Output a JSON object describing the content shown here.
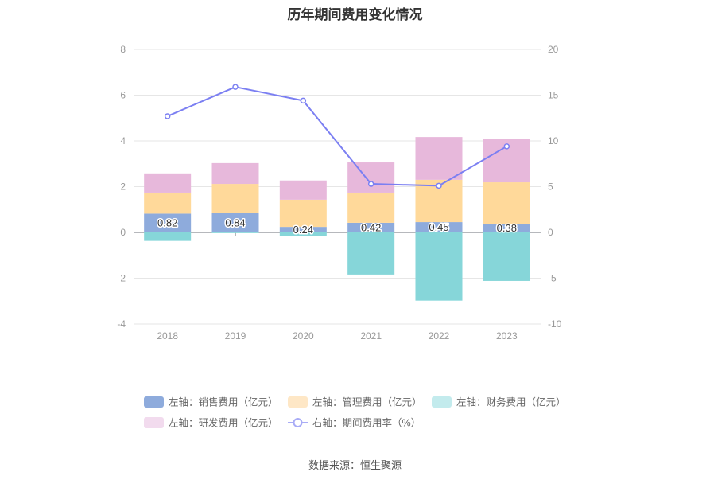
{
  "page": {
    "source": "数据来源：恒生聚源"
  },
  "colors": {
    "background": "#ffffff",
    "axis_label": "#999999",
    "grid": "#e6e6e6",
    "axis_line": "#6e7079",
    "legend_text": "#666666",
    "data_label": "#333333"
  },
  "chart_data": {
    "type": "bar",
    "title": "历年期间费用变化情况",
    "categories": [
      "2018",
      "2019",
      "2020",
      "2021",
      "2022",
      "2023"
    ],
    "y_left": {
      "ylim": [
        -4,
        8
      ],
      "ticks": [
        8,
        6,
        4,
        2,
        0,
        -2,
        -4
      ]
    },
    "y_right": {
      "ylim": [
        -10,
        20
      ],
      "ticks": [
        20,
        15,
        10,
        5,
        0,
        -5,
        -10
      ]
    },
    "grid": true,
    "legend_position": "bottom",
    "series": [
      {
        "name": "左轴：销售费用（亿元）",
        "type": "bar",
        "axis": "left",
        "stack": "total",
        "color": "#8eabdc",
        "legend_color": "#8eabdc",
        "values": [
          0.82,
          0.84,
          0.24,
          0.42,
          0.45,
          0.38
        ],
        "data_labels": [
          "0.82",
          "0.84",
          "0.24",
          "0.42",
          "0.45",
          "0.38"
        ]
      },
      {
        "name": "左轴：管理费用（亿元）",
        "type": "bar",
        "axis": "left",
        "stack": "total",
        "color": "#ffd99a",
        "legend_color": "#fee7c6",
        "values": [
          0.92,
          1.28,
          1.19,
          1.32,
          1.85,
          1.81
        ]
      },
      {
        "name": "左轴：财务费用（亿元）",
        "type": "bar",
        "axis": "left",
        "stack": "total",
        "color": "#86d6d9",
        "legend_color": "#c3ebed",
        "values": [
          -0.37,
          -0.03,
          -0.15,
          -1.84,
          -2.98,
          -2.12
        ]
      },
      {
        "name": "左轴：研发费用（亿元）",
        "type": "bar",
        "axis": "left",
        "stack": "total",
        "color": "#e7b8db",
        "legend_color": "#f2dbee",
        "values": [
          0.84,
          0.91,
          0.84,
          1.32,
          1.87,
          1.88
        ]
      },
      {
        "name": "右轴：期间费用率（%）",
        "type": "line",
        "axis": "right",
        "color": "#7b7ff2",
        "legend_color": "#a9acf6",
        "values": [
          12.7,
          15.9,
          14.4,
          5.3,
          5.1,
          9.4
        ]
      }
    ]
  }
}
